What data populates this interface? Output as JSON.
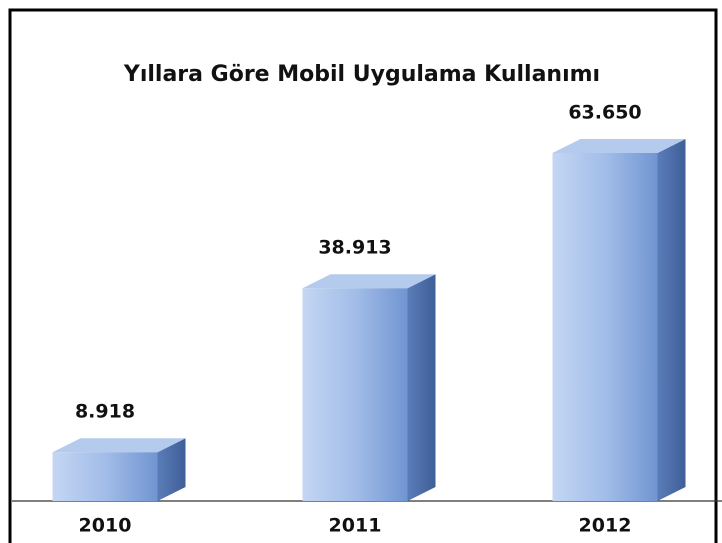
{
  "chart_data": {
    "type": "bar3d",
    "title": "Yıllara Göre Mobil Uygulama Kullanımı",
    "categories": [
      "2010",
      "2011",
      "2012"
    ],
    "values": [
      8918,
      38913,
      63650
    ],
    "value_labels": [
      "8.918",
      "38.913",
      "63.650"
    ],
    "color": "#7f9fd6"
  }
}
